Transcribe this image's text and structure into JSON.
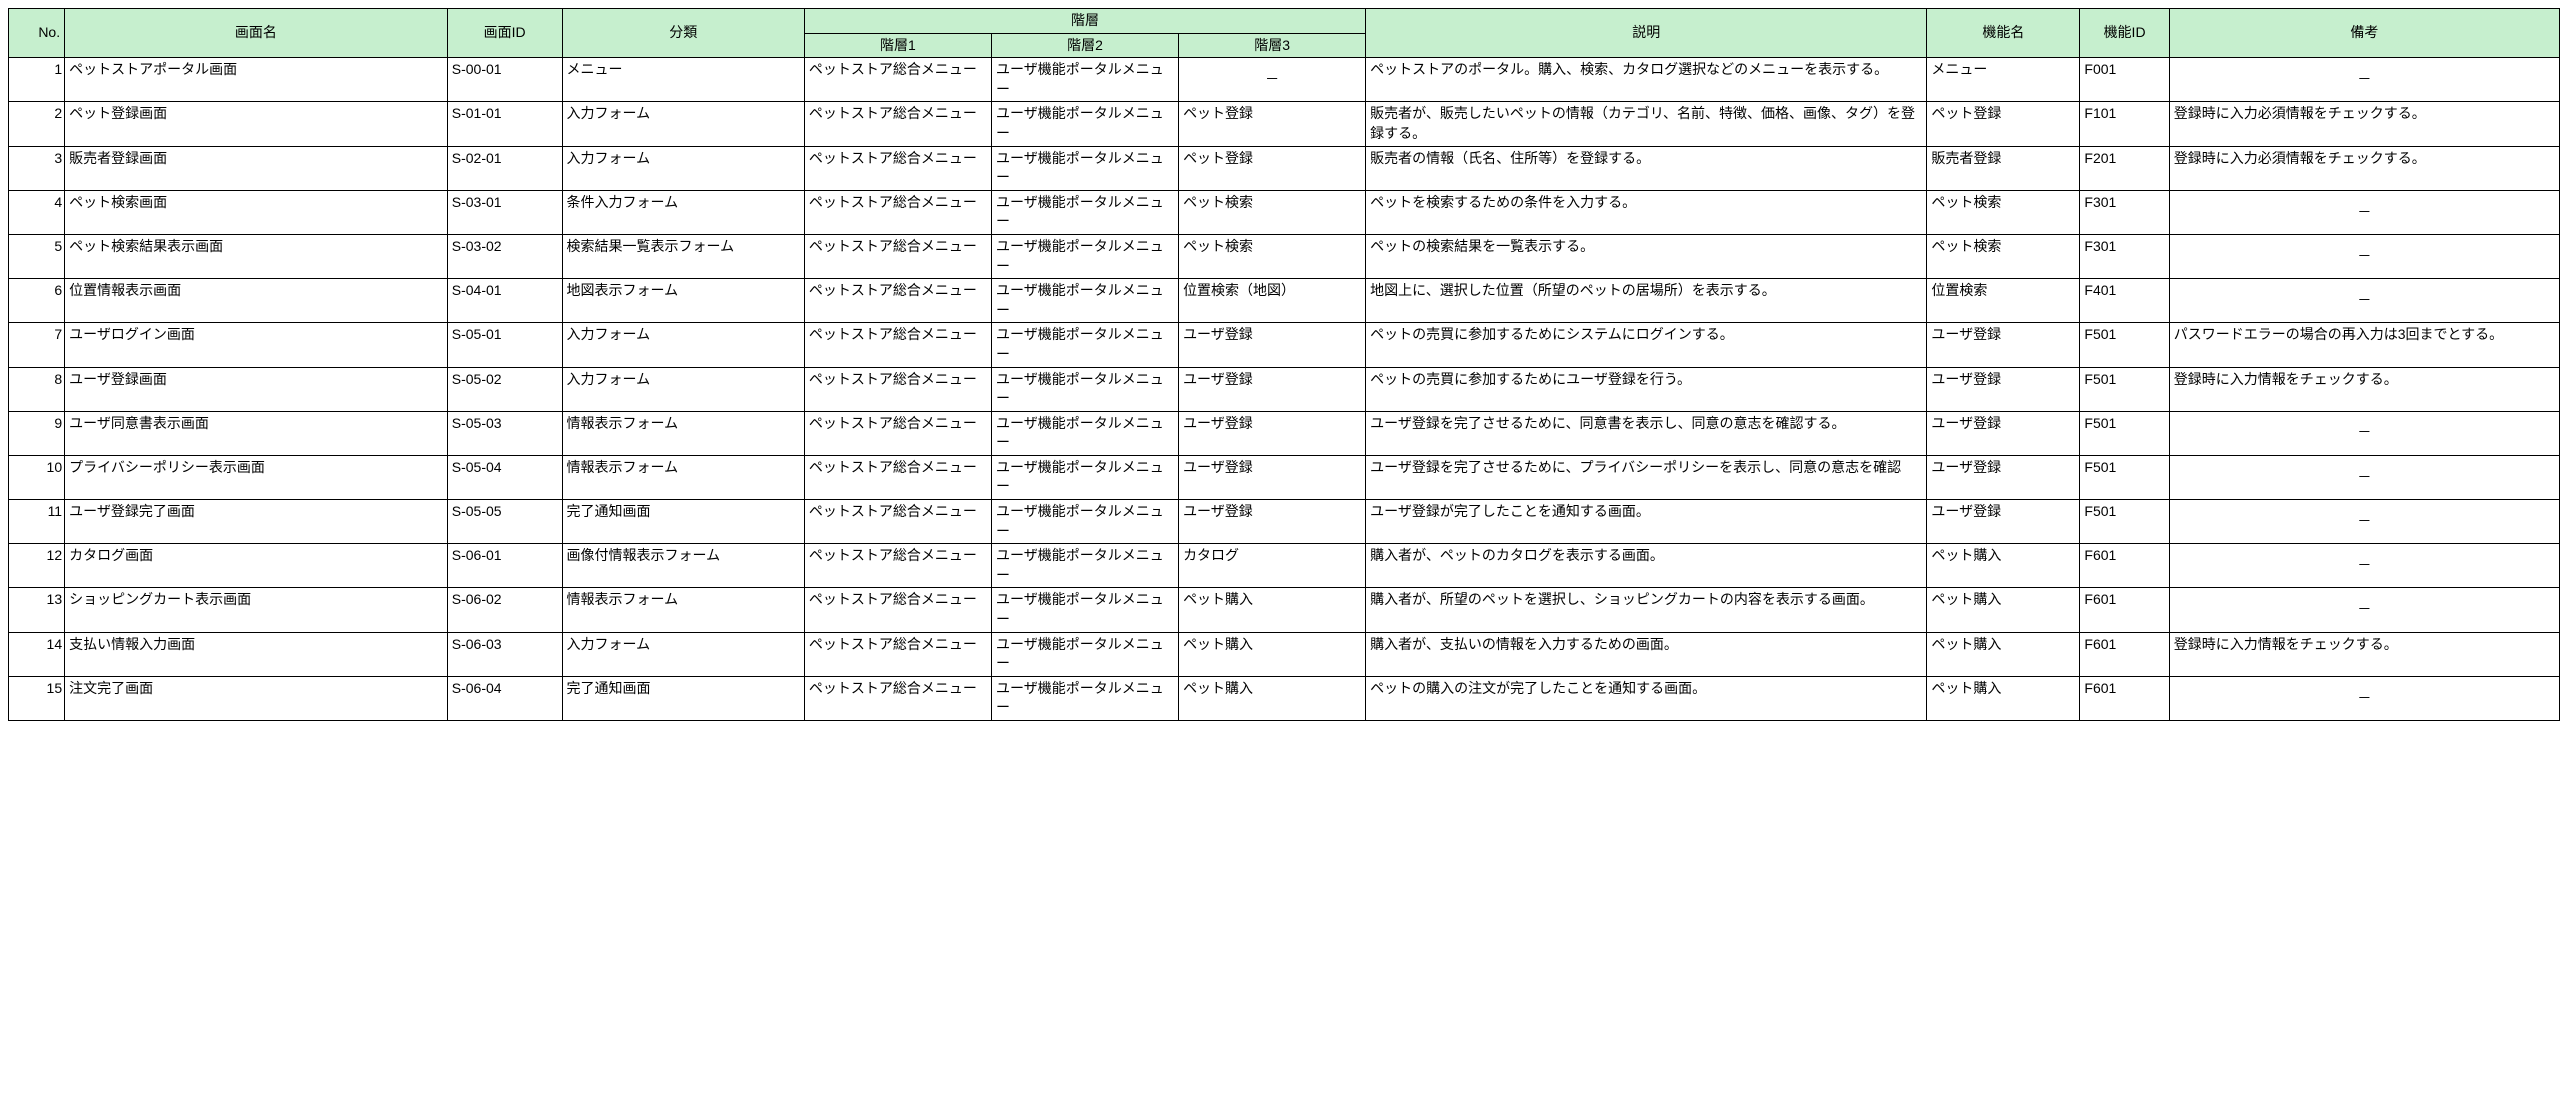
{
  "table": {
    "header_bg": "#c6efce",
    "border_color": "#000000",
    "font_family": "MS PGothic",
    "font_size": 14,
    "columns": {
      "no": "No.",
      "screen_name": "画面名",
      "screen_id": "画面ID",
      "category": "分類",
      "hierarchy": "階層",
      "hierarchy1": "階層1",
      "hierarchy2": "階層2",
      "hierarchy3": "階層3",
      "description": "説明",
      "function_name": "機能名",
      "function_id": "機能ID",
      "remarks": "備考"
    },
    "rows": [
      {
        "no": "1",
        "screen_name": "ペットストアポータル画面",
        "screen_id": "S-00-01",
        "category": "メニュー",
        "h1": "ペットストア総合メニュー",
        "h2": "ユーザ機能ポータルメニュー",
        "h3": "－",
        "h3_center": true,
        "description": "ペットストアのポータル。購入、検索、カタログ選択などのメニューを表示する。",
        "function_name": "メニュー",
        "function_id": "F001",
        "remarks": "－",
        "remarks_center": true
      },
      {
        "no": "2",
        "screen_name": "ペット登録画面",
        "screen_id": "S-01-01",
        "category": "入力フォーム",
        "h1": "ペットストア総合メニュー",
        "h2": "ユーザ機能ポータルメニュー",
        "h3": "ペット登録",
        "description": "販売者が、販売したいペットの情報（カテゴリ、名前、特徴、価格、画像、タグ）を登録する。",
        "function_name": "ペット登録",
        "function_id": "F101",
        "remarks": "登録時に入力必須情報をチェックする。"
      },
      {
        "no": "3",
        "screen_name": "販売者登録画面",
        "screen_id": "S-02-01",
        "category": "入力フォーム",
        "h1": "ペットストア総合メニュー",
        "h2": "ユーザ機能ポータルメニュー",
        "h3": "ペット登録",
        "description": "販売者の情報（氏名、住所等）を登録する。",
        "function_name": "販売者登録",
        "function_id": "F201",
        "remarks": "登録時に入力必須情報をチェックする。"
      },
      {
        "no": "4",
        "screen_name": "ペット検索画面",
        "screen_id": "S-03-01",
        "category": "条件入力フォーム",
        "h1": "ペットストア総合メニュー",
        "h2": "ユーザ機能ポータルメニュー",
        "h3": "ペット検索",
        "description": "ペットを検索するための条件を入力する。",
        "function_name": "ペット検索",
        "function_id": "F301",
        "remarks": "－",
        "remarks_center": true
      },
      {
        "no": "5",
        "screen_name": "ペット検索結果表示画面",
        "screen_id": "S-03-02",
        "category": "検索結果一覧表示フォーム",
        "h1": "ペットストア総合メニュー",
        "h2": "ユーザ機能ポータルメニュー",
        "h3": "ペット検索",
        "description": "ペットの検索結果を一覧表示する。",
        "function_name": "ペット検索",
        "function_id": "F301",
        "remarks": "－",
        "remarks_center": true
      },
      {
        "no": "6",
        "screen_name": "位置情報表示画面",
        "screen_id": "S-04-01",
        "category": "地図表示フォーム",
        "h1": "ペットストア総合メニュー",
        "h2": "ユーザ機能ポータルメニュー",
        "h3": "位置検索（地図）",
        "description": "地図上に、選択した位置（所望のペットの居場所）を表示する。",
        "function_name": "位置検索",
        "function_id": "F401",
        "remarks": "－",
        "remarks_center": true
      },
      {
        "no": "7",
        "screen_name": "ユーザログイン画面",
        "screen_id": "S-05-01",
        "category": "入力フォーム",
        "h1": "ペットストア総合メニュー",
        "h2": "ユーザ機能ポータルメニュー",
        "h3": "ユーザ登録",
        "description": "ペットの売買に参加するためにシステムにログインする。",
        "function_name": "ユーザ登録",
        "function_id": "F501",
        "remarks": "パスワードエラーの場合の再入力は3回までとする。"
      },
      {
        "no": "8",
        "screen_name": "ユーザ登録画面",
        "screen_id": "S-05-02",
        "category": "入力フォーム",
        "h1": "ペットストア総合メニュー",
        "h2": "ユーザ機能ポータルメニュー",
        "h3": "ユーザ登録",
        "description": "ペットの売買に参加するためにユーザ登録を行う。",
        "function_name": "ユーザ登録",
        "function_id": "F501",
        "remarks": "登録時に入力情報をチェックする。"
      },
      {
        "no": "9",
        "screen_name": "ユーザ同意書表示画面",
        "screen_id": "S-05-03",
        "category": "情報表示フォーム",
        "h1": "ペットストア総合メニュー",
        "h2": "ユーザ機能ポータルメニュー",
        "h3": "ユーザ登録",
        "description": "ユーザ登録を完了させるために、同意書を表示し、同意の意志を確認する。",
        "function_name": "ユーザ登録",
        "function_id": "F501",
        "remarks": "－",
        "remarks_center": true
      },
      {
        "no": "10",
        "screen_name": "プライバシーポリシー表示画面",
        "screen_id": "S-05-04",
        "category": "情報表示フォーム",
        "h1": "ペットストア総合メニュー",
        "h2": "ユーザ機能ポータルメニュー",
        "h3": "ユーザ登録",
        "description": "ユーザ登録を完了させるために、プライバシーポリシーを表示し、同意の意志を確認",
        "function_name": "ユーザ登録",
        "function_id": "F501",
        "remarks": "－",
        "remarks_center": true
      },
      {
        "no": "11",
        "screen_name": "ユーザ登録完了画面",
        "screen_id": "S-05-05",
        "category": "完了通知画面",
        "h1": "ペットストア総合メニュー",
        "h2": "ユーザ機能ポータルメニュー",
        "h3": "ユーザ登録",
        "description": "ユーザ登録が完了したことを通知する画面。",
        "function_name": "ユーザ登録",
        "function_id": "F501",
        "remarks": "－",
        "remarks_center": true
      },
      {
        "no": "12",
        "screen_name": "カタログ画面",
        "screen_id": "S-06-01",
        "category": "画像付情報表示フォーム",
        "h1": "ペットストア総合メニュー",
        "h2": "ユーザ機能ポータルメニュー",
        "h3": "カタログ",
        "description": "購入者が、ペットのカタログを表示する画面。",
        "function_name": "ペット購入",
        "function_id": "F601",
        "remarks": "－",
        "remarks_center": true
      },
      {
        "no": "13",
        "screen_name": "ショッピングカート表示画面",
        "screen_id": "S-06-02",
        "category": "情報表示フォーム",
        "h1": "ペットストア総合メニュー",
        "h2": "ユーザ機能ポータルメニュー",
        "h3": "ペット購入",
        "description": "購入者が、所望のペットを選択し、ショッピングカートの内容を表示する画面。",
        "function_name": "ペット購入",
        "function_id": "F601",
        "remarks": "－",
        "remarks_center": true
      },
      {
        "no": "14",
        "screen_name": "支払い情報入力画面",
        "screen_id": "S-06-03",
        "category": "入力フォーム",
        "h1": "ペットストア総合メニュー",
        "h2": "ユーザ機能ポータルメニュー",
        "h3": "ペット購入",
        "description": "購入者が、支払いの情報を入力するための画面。",
        "function_name": "ペット購入",
        "function_id": "F601",
        "remarks": "登録時に入力情報をチェックする。"
      },
      {
        "no": "15",
        "screen_name": "注文完了画面",
        "screen_id": "S-06-04",
        "category": "完了通知画面",
        "h1": "ペットストア総合メニュー",
        "h2": "ユーザ機能ポータルメニュー",
        "h3": "ペット購入",
        "description": "ペットの購入の注文が完了したことを通知する画面。",
        "function_name": "ペット購入",
        "function_id": "F601",
        "remarks": "－",
        "remarks_center": true
      }
    ]
  }
}
